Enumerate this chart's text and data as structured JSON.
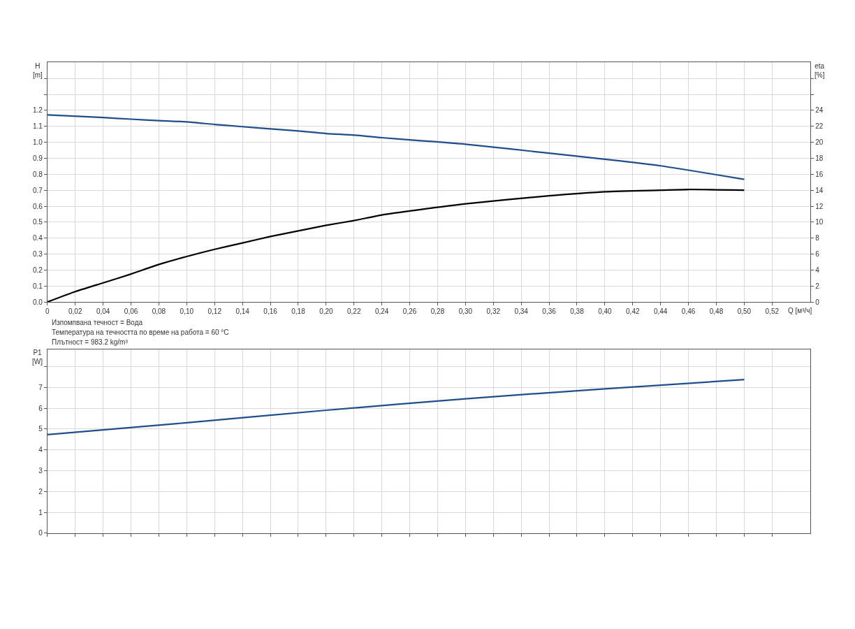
{
  "chart_data": [
    {
      "type": "line",
      "xlabel": "Q [м³/ч]",
      "ylabel": "H\n[m]",
      "y2label": "eta\n[%]",
      "xlim": [
        0,
        0.5475
      ],
      "ylim": [
        0,
        1.5
      ],
      "y2lim": [
        0,
        30
      ],
      "xticks": [
        0,
        {
          "value": 0.02,
          "label": "0,02"
        },
        {
          "value": 0.04,
          "label": "0,04"
        },
        {
          "value": 0.06,
          "label": "0,06"
        },
        {
          "value": 0.08,
          "label": "0,08"
        },
        {
          "value": 0.1,
          "label": "0,10"
        },
        {
          "value": 0.12,
          "label": "0,12"
        },
        {
          "value": 0.14,
          "label": "0,14"
        },
        {
          "value": 0.16,
          "label": "0,16"
        },
        {
          "value": 0.18,
          "label": "0,18"
        },
        {
          "value": 0.2,
          "label": "0,20"
        },
        {
          "value": 0.22,
          "label": "0,22"
        },
        {
          "value": 0.24,
          "label": "0,24"
        },
        {
          "value": 0.26,
          "label": "0,26"
        },
        {
          "value": 0.28,
          "label": "0,28"
        },
        {
          "value": 0.3,
          "label": "0,30"
        },
        {
          "value": 0.32,
          "label": "0,32"
        },
        {
          "value": 0.34,
          "label": "0,34"
        },
        {
          "value": 0.36,
          "label": "0,36"
        },
        {
          "value": 0.38,
          "label": "0,38"
        },
        {
          "value": 0.4,
          "label": "0,40"
        },
        {
          "value": 0.42,
          "label": "0,42"
        },
        {
          "value": 0.44,
          "label": "0,44"
        },
        {
          "value": 0.46,
          "label": "0,46"
        },
        {
          "value": 0.48,
          "label": "0,48"
        },
        {
          "value": 0.5,
          "label": "0,50"
        },
        {
          "value": 0.52,
          "label": "0,52"
        }
      ],
      "yticks": [
        {
          "value": 0,
          "label": "0.0"
        },
        0.1,
        0.2,
        0.3,
        0.4,
        0.5,
        0.6,
        0.7,
        0.8,
        0.9,
        {
          "value": 1,
          "label": "1.0"
        },
        1.1,
        1.2,
        {
          "value": 1.3,
          "label": null
        },
        {
          "value": 1.4,
          "label": null
        }
      ],
      "y2ticks": [
        0,
        2,
        4,
        6,
        8,
        10,
        12,
        14,
        16,
        18,
        20,
        22,
        24,
        {
          "value": 26,
          "label": null
        },
        {
          "value": 28,
          "label": null
        }
      ],
      "grid": true,
      "marker": "none",
      "line_style": "solid",
      "series": [
        {
          "color": "#1f4e8c",
          "x": [
            0,
            0.04,
            0.06,
            0.08,
            0.1,
            0.12,
            0.14,
            0.16,
            0.18,
            0.2,
            0.22,
            0.24,
            0.26,
            0.3,
            0.36,
            0.4,
            0.44,
            0.48,
            0.5
          ],
          "values": [
            1.172,
            1.155,
            1.145,
            1.136,
            1.128,
            1.112,
            1.098,
            1.084,
            1.071,
            1.055,
            1.045,
            1.029,
            1.015,
            0.988,
            0.932,
            0.894,
            0.853,
            0.797,
            0.768
          ]
        },
        {
          "color": "#000000",
          "axis": "y2",
          "x": [
            0,
            0.02,
            0.04,
            0.06,
            0.08,
            0.1,
            0.12,
            0.14,
            0.16,
            0.18,
            0.2,
            0.22,
            0.24,
            0.26,
            0.3,
            0.36,
            0.4,
            0.44,
            0.46,
            0.5
          ],
          "values": [
            0,
            1.3,
            2.4,
            3.5,
            4.7,
            5.7,
            6.6,
            7.4,
            8.2,
            8.9,
            9.6,
            10.2,
            10.9,
            11.4,
            12.3,
            13.3,
            13.8,
            14.0,
            14.1,
            14.0
          ]
        }
      ],
      "annotations": [
        "Изпомпвана течност = Вода",
        "Температура на течността по време на работа = 60 °C",
        "Плътност = 983.2 kg/m³"
      ]
    },
    {
      "type": "line",
      "ylabel": "P1\n[W]",
      "xlim": [
        0,
        0.5475
      ],
      "ylim": [
        0,
        8.83
      ],
      "xticks": [
        0,
        0.02,
        0.04,
        0.06,
        0.08,
        0.1,
        0.12,
        0.14,
        0.16,
        0.18,
        0.2,
        0.22,
        0.24,
        0.26,
        0.28,
        0.3,
        0.32,
        0.34,
        0.36,
        0.38,
        0.4,
        0.42,
        0.44,
        0.46,
        0.48,
        0.5,
        0.52
      ],
      "yticks": [
        0,
        1,
        2,
        3,
        4,
        5,
        6,
        7,
        {
          "value": 8,
          "label": null
        }
      ],
      "tick_labels": "y",
      "grid": true,
      "marker": "none",
      "line_style": "solid",
      "series": [
        {
          "color": "#1f4e8c",
          "x": [
            0,
            0.1,
            0.2,
            0.3,
            0.4,
            0.5
          ],
          "values": [
            4.73,
            5.3,
            5.9,
            6.45,
            6.93,
            7.37
          ]
        }
      ]
    }
  ]
}
